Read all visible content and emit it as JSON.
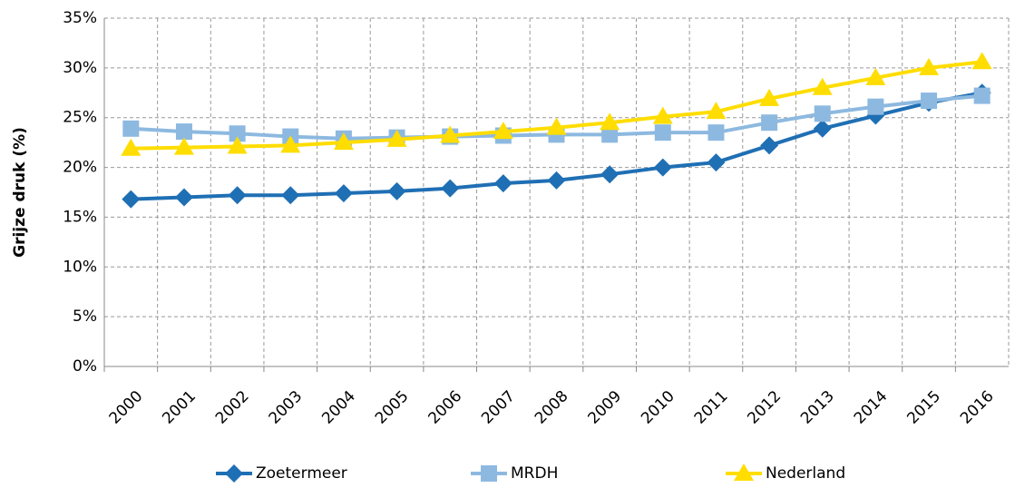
{
  "chart_data": {
    "type": "line",
    "y_label": "Grijze druk (%)",
    "categories": [
      "2000",
      "2001",
      "2002",
      "2003",
      "2004",
      "2005",
      "2006",
      "2007",
      "2008",
      "2009",
      "2010",
      "2011",
      "2012",
      "2013",
      "2014",
      "2015",
      "2016"
    ],
    "series": [
      {
        "name": "Zoetermeer",
        "color": "#1f6fb4",
        "marker": "diamond",
        "values": [
          16.8,
          17.0,
          17.2,
          17.2,
          17.4,
          17.6,
          17.9,
          18.4,
          18.7,
          19.3,
          20.0,
          20.5,
          22.2,
          23.9,
          25.2,
          26.5,
          27.5
        ]
      },
      {
        "name": "MRDH",
        "color": "#8db9e0",
        "marker": "square",
        "values": [
          23.9,
          23.6,
          23.4,
          23.1,
          22.9,
          23.0,
          23.1,
          23.2,
          23.3,
          23.3,
          23.5,
          23.5,
          24.5,
          25.4,
          26.1,
          26.7,
          27.2
        ]
      },
      {
        "name": "Nederland",
        "color": "#ffdd00",
        "marker": "triangle",
        "values": [
          21.9,
          22.0,
          22.1,
          22.2,
          22.5,
          22.8,
          23.2,
          23.6,
          24.0,
          24.5,
          25.1,
          25.6,
          26.9,
          28.0,
          29.0,
          30.0,
          30.6
        ]
      }
    ],
    "ylim": [
      0,
      35
    ],
    "yticks": [
      {
        "value": 0,
        "label": "0%"
      },
      {
        "value": 5,
        "label": "5%"
      },
      {
        "value": 10,
        "label": "10%"
      },
      {
        "value": 15,
        "label": "15%"
      },
      {
        "value": 20,
        "label": "20%"
      },
      {
        "value": 25,
        "label": "25%"
      },
      {
        "value": 30,
        "label": "30%"
      },
      {
        "value": 35,
        "label": "35%"
      }
    ],
    "grid": true,
    "legend": "bottom"
  }
}
